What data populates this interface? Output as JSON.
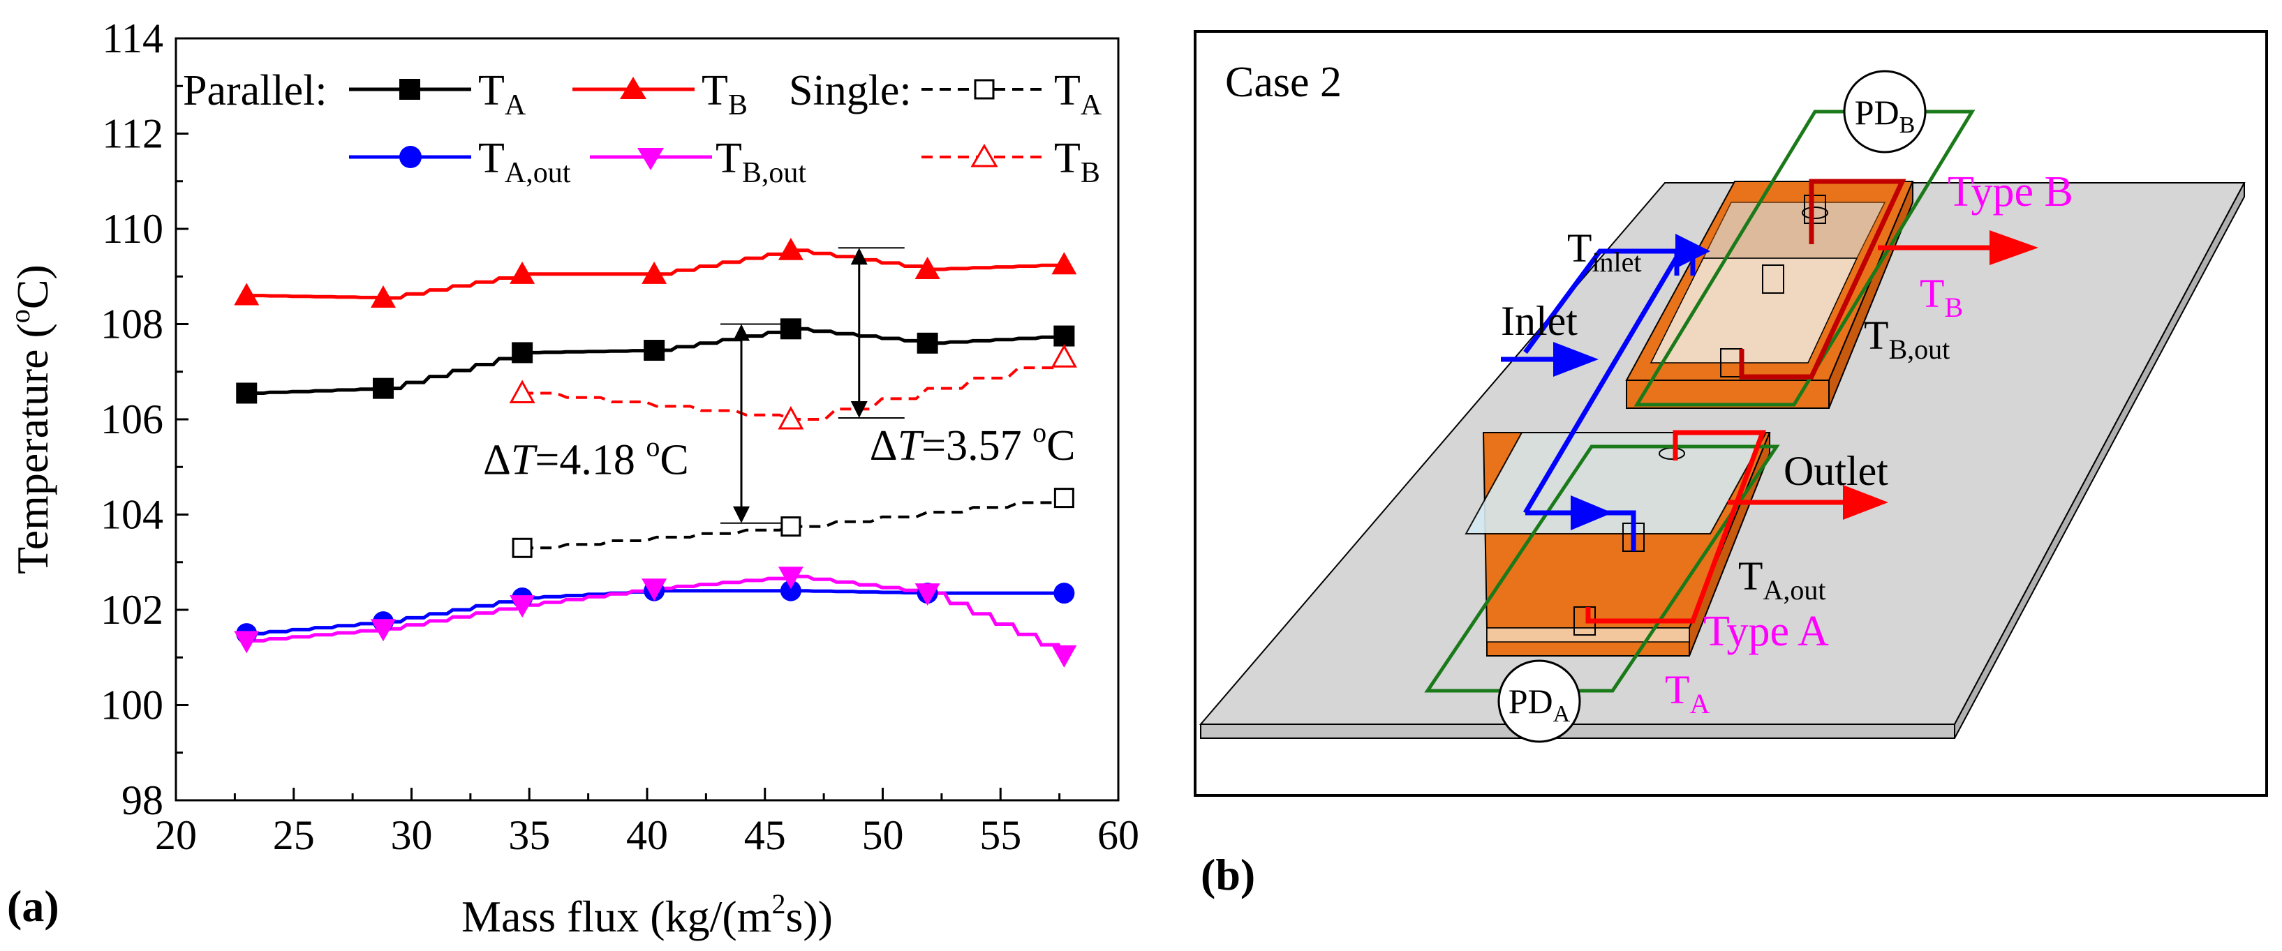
{
  "chart_data": {
    "type": "line",
    "panel_label": "(a)",
    "xlabel": "Mass flux (kg/(m",
    "xlabel_sup": "2",
    "xlabel_end": "s))",
    "ylabel": "Temperature (",
    "ylabel_sup": "o",
    "ylabel_end": "C)",
    "xlim": [
      20,
      60
    ],
    "ylim": [
      98,
      114
    ],
    "xticks": [
      20,
      25,
      30,
      35,
      40,
      45,
      50,
      55,
      60
    ],
    "yticks": [
      98,
      100,
      102,
      104,
      106,
      108,
      110,
      112,
      114
    ],
    "xtick_labels": [
      "20",
      "25",
      "30",
      "35",
      "40",
      "45",
      "50",
      "55",
      "60"
    ],
    "ytick_labels": [
      "98",
      "100",
      "102",
      "104",
      "106",
      "108",
      "110",
      "112",
      "114"
    ],
    "legend": {
      "group_parallel": "Parallel:",
      "group_single": "Single:",
      "placement": "top-left"
    },
    "series": [
      {
        "id": "par_TA",
        "group": "Parallel",
        "name": "T",
        "sub": "A",
        "color": "#000000",
        "marker": "square-filled",
        "dash": "solid",
        "x": [
          23.0,
          28.8,
          34.7,
          40.3,
          46.1,
          51.9,
          57.7
        ],
        "values": [
          106.55,
          106.65,
          107.4,
          107.45,
          107.9,
          107.6,
          107.75
        ]
      },
      {
        "id": "par_TB",
        "group": "Parallel",
        "name": "T",
        "sub": "B",
        "color": "#ff0000",
        "marker": "triangle-up-filled",
        "dash": "solid",
        "x": [
          23.0,
          28.8,
          34.7,
          40.3,
          46.1,
          51.9,
          57.7
        ],
        "values": [
          108.6,
          108.55,
          109.05,
          109.05,
          109.55,
          109.15,
          109.25
        ]
      },
      {
        "id": "par_TAout",
        "group": "Parallel",
        "name": "T",
        "sub": "A,out",
        "color": "#0000ff",
        "marker": "circle-filled",
        "dash": "solid",
        "x": [
          23.0,
          28.8,
          34.7,
          40.3,
          46.1,
          51.9,
          57.7
        ],
        "values": [
          101.5,
          101.75,
          102.25,
          102.4,
          102.4,
          102.35,
          102.35
        ]
      },
      {
        "id": "par_TBout",
        "group": "Parallel",
        "name": "T",
        "sub": "B,out",
        "color": "#ff00ff",
        "marker": "triangle-down-filled",
        "dash": "solid",
        "x": [
          23.0,
          28.8,
          34.7,
          40.3,
          46.1,
          51.9,
          57.7
        ],
        "values": [
          101.35,
          101.6,
          102.1,
          102.45,
          102.7,
          102.35,
          101.05
        ]
      },
      {
        "id": "sin_TA",
        "group": "Single",
        "name": "T",
        "sub": "A",
        "color": "#000000",
        "marker": "square-open",
        "dash": "dashed",
        "x": [
          34.7,
          46.1,
          57.7
        ],
        "values": [
          103.3,
          103.75,
          104.35
        ]
      },
      {
        "id": "sin_TB",
        "group": "Single",
        "name": "T",
        "sub": "B",
        "color": "#ff0000",
        "marker": "triangle-up-open",
        "dash": "dashed",
        "x": [
          34.7,
          46.1,
          57.7
        ],
        "values": [
          106.55,
          106.0,
          107.3
        ]
      }
    ],
    "annotations": [
      {
        "id": "dT1",
        "text_delta": "Δ",
        "text_var": "T",
        "text_val": "=4.18 ",
        "text_sup": "o",
        "text_unit": "C",
        "x": 44.0,
        "y_top": 108.0,
        "y_bottom": 103.82
      },
      {
        "id": "dT2",
        "text_delta": "Δ",
        "text_var": "T",
        "text_val": "=3.57 ",
        "text_sup": "o",
        "text_unit": "C",
        "x": 49.0,
        "y_top": 109.6,
        "y_bottom": 106.03
      }
    ]
  },
  "schematic": {
    "panel_label": "(b)",
    "title": "Case 2",
    "pd_a": {
      "main": "PD",
      "sub": "A"
    },
    "pd_b": {
      "main": "PD",
      "sub": "B"
    },
    "type_a": "Type A",
    "type_b": "Type B",
    "t_inlet": {
      "main": "T",
      "sub": "inlet"
    },
    "t_b": {
      "main": "T",
      "sub": "B"
    },
    "t_bout": {
      "main": "T",
      "sub": "B,out"
    },
    "t_aout": {
      "main": "T",
      "sub": "A,out"
    },
    "t_a": {
      "main": "T",
      "sub": "A"
    },
    "inlet": "Inlet",
    "outlet": "Outlet",
    "colors": {
      "blue": "#0000ff",
      "red": "#ff0000",
      "darkred": "#c00000",
      "green": "#1a7a1a",
      "magenta": "#ff00ff",
      "orange": "#e8731a",
      "plate": "#d6d6d6"
    }
  }
}
